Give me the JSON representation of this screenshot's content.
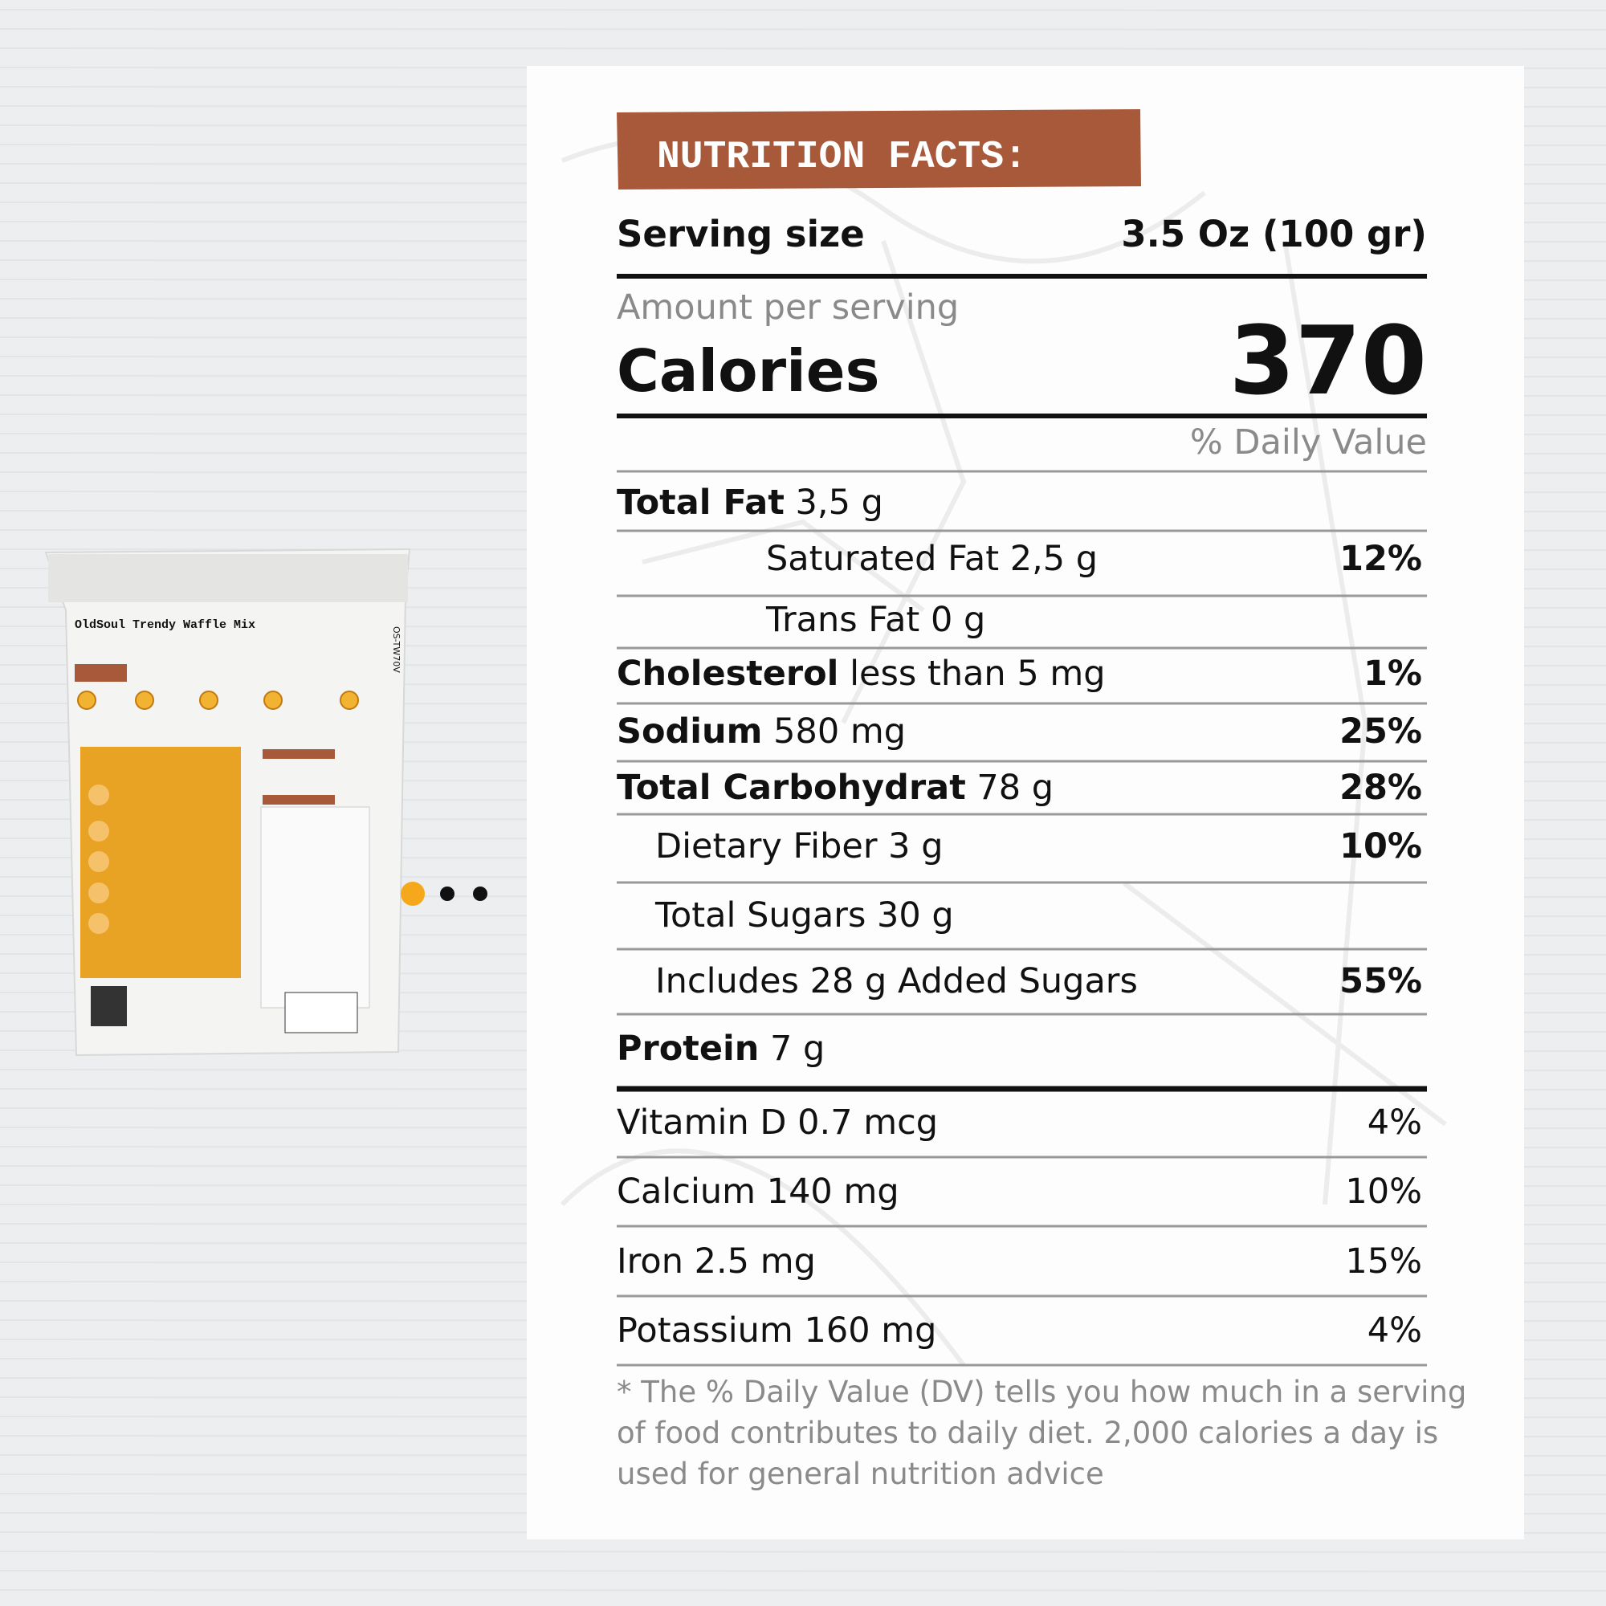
{
  "package": {
    "title": "OldSoul Trendy Waffle Mix",
    "side_code": "OS-TW70V"
  },
  "badge": "NUTRITION FACTS:",
  "serving": {
    "label": "Serving size",
    "value": "3.5 Oz (100 gr)"
  },
  "amount_per_serving": "Amount per serving",
  "calories": {
    "label": "Calories",
    "value": 370
  },
  "daily_value_header": "% Daily Value",
  "nutrients": [
    {
      "name": "Total Fat",
      "amount": "3,5 g"
    },
    {
      "name": "Saturated Fat",
      "amount": "2,5 g",
      "dv": "12%"
    },
    {
      "name": "Trans Fat",
      "amount": "0 g"
    },
    {
      "name": "Cholesterol",
      "amount": "less than 5 mg",
      "dv": "1%"
    },
    {
      "name": "Sodium",
      "amount": "580 mg",
      "dv": "25%"
    },
    {
      "name": "Total Carbohydrat",
      "amount": "78 g",
      "dv": "28%"
    },
    {
      "name": "Dietary Fiber",
      "amount": "3 g",
      "dv": "10%"
    },
    {
      "name": "Total Sugars",
      "amount": "30 g"
    },
    {
      "name": "Includes 28 g Added Sugars",
      "dv": "55%"
    },
    {
      "name": "Protein",
      "amount": "7 g"
    }
  ],
  "vitamins": [
    {
      "name": "Vitamin D 0.7 mcg",
      "dv": "4%"
    },
    {
      "name": "Calcium 140 mg",
      "dv": "10%"
    },
    {
      "name": "Iron 2.5 mg",
      "dv": "15%"
    },
    {
      "name": "Potassium 160 mg",
      "dv": "4%"
    }
  ],
  "footnote": [
    "*  The % Daily Value (DV) tells you how much in a serving",
    "of food contributes to daily diet. 2,000 calories a day is",
    "used for general nutrition advice"
  ]
}
